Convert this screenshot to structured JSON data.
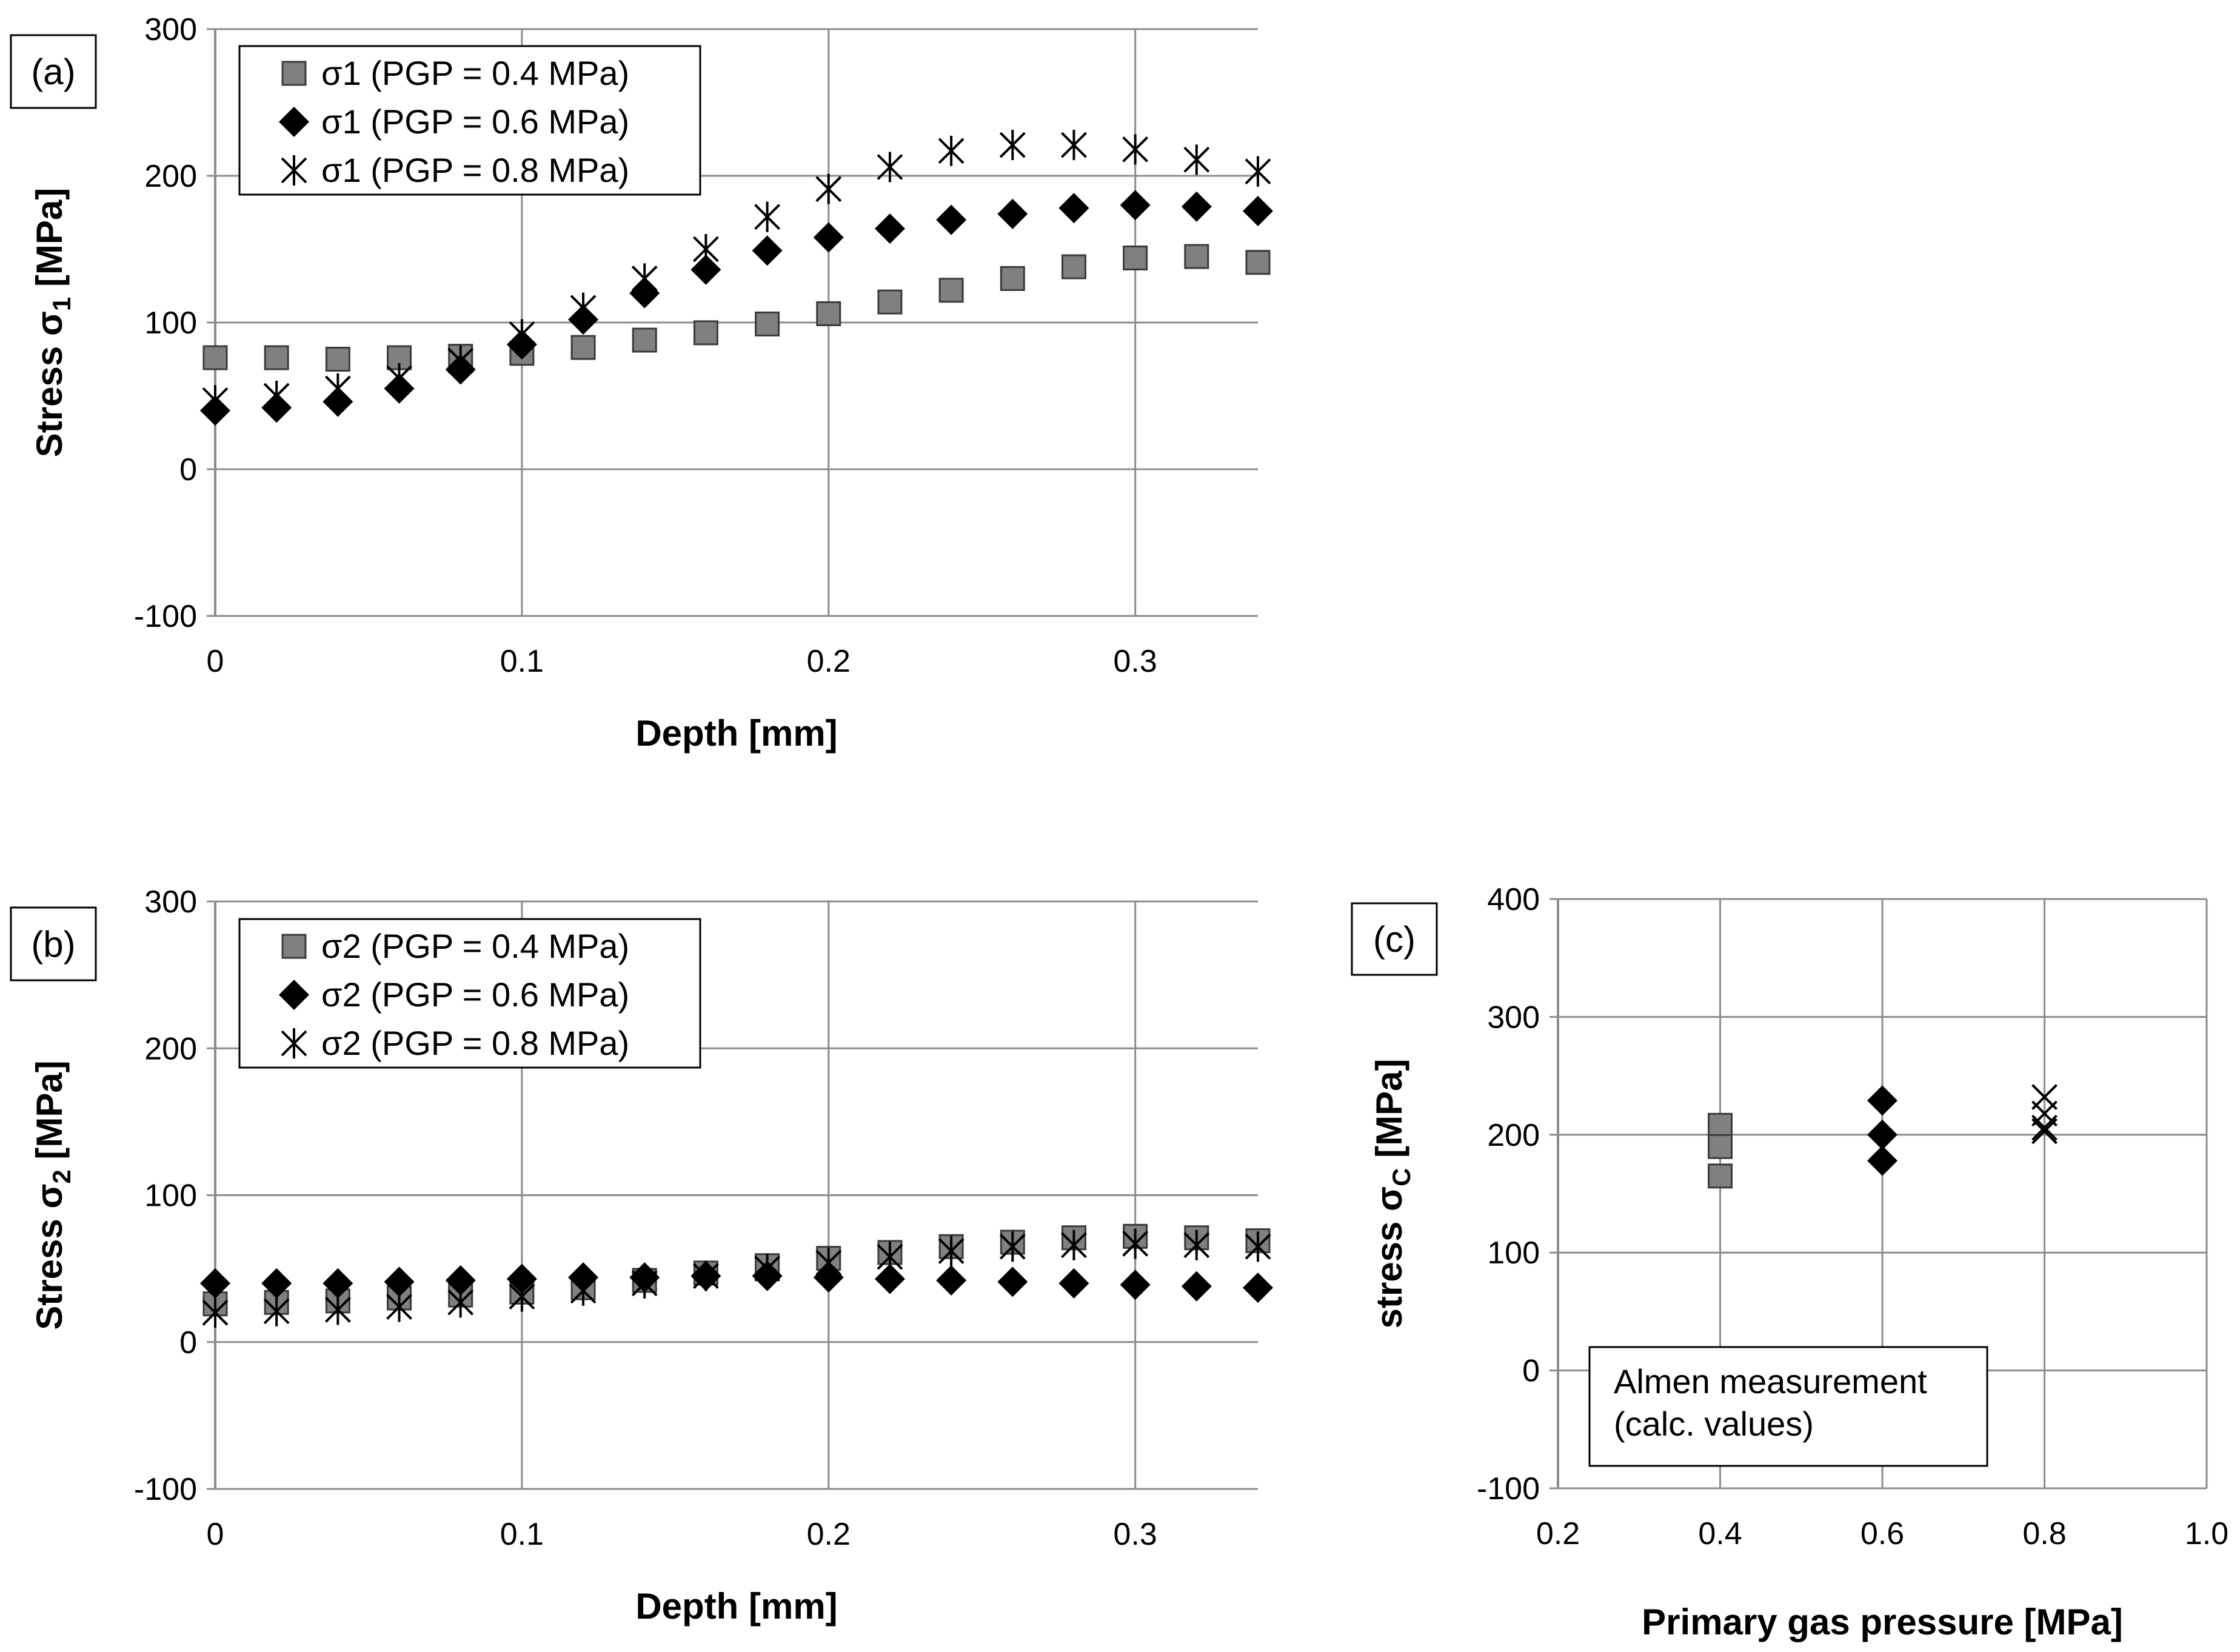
{
  "chart_data": [
    {
      "panel_label": "(a)",
      "type": "scatter",
      "xlabel": "Depth [mm]",
      "ylabel": {
        "main": "Stress σ",
        "sub": "1",
        "unit": " [MPa]"
      },
      "xlim": [
        0,
        0.34
      ],
      "ylim": [
        -100,
        300
      ],
      "xticks": [
        0,
        0.1,
        0.2,
        0.3
      ],
      "xtick_labels": [
        "0",
        "0.1",
        "0.2",
        "0.3"
      ],
      "yticks": [
        -100,
        0,
        100,
        200,
        300
      ],
      "ytick_labels": [
        "-100",
        "0",
        "100",
        "200",
        "300"
      ],
      "grid": true,
      "legend_position": "top-left",
      "x": [
        0,
        0.02,
        0.04,
        0.06,
        0.08,
        0.1,
        0.12,
        0.14,
        0.16,
        0.18,
        0.2,
        0.22,
        0.24,
        0.26,
        0.28,
        0.3,
        0.32,
        0.34
      ],
      "series": [
        {
          "name": "σ1 (PGP = 0.4 MPa)",
          "marker": "square",
          "color": "#808080",
          "values": [
            76,
            76,
            75,
            76,
            77,
            79,
            83,
            88,
            93,
            99,
            106,
            114,
            122,
            130,
            138,
            144,
            145,
            141
          ]
        },
        {
          "name": "σ1 (PGP = 0.6 MPa)",
          "marker": "diamond",
          "color": "#000000",
          "values": [
            40,
            42,
            46,
            55,
            68,
            85,
            102,
            120,
            136,
            149,
            158,
            164,
            170,
            174,
            178,
            180,
            179,
            176
          ]
        },
        {
          "name": "σ1 (PGP = 0.8 MPa)",
          "marker": "star",
          "color": "#000000",
          "values": [
            47,
            50,
            55,
            62,
            74,
            92,
            110,
            130,
            150,
            172,
            191,
            206,
            217,
            221,
            221,
            218,
            211,
            203
          ]
        }
      ]
    },
    {
      "panel_label": "(b)",
      "type": "scatter",
      "xlabel": "Depth [mm]",
      "ylabel": {
        "main": "Stress σ",
        "sub": "2",
        "unit": " [MPa]"
      },
      "xlim": [
        0,
        0.34
      ],
      "ylim": [
        -100,
        300
      ],
      "xticks": [
        0,
        0.1,
        0.2,
        0.3
      ],
      "xtick_labels": [
        "0",
        "0.1",
        "0.2",
        "0.3"
      ],
      "yticks": [
        -100,
        0,
        100,
        200,
        300
      ],
      "ytick_labels": [
        "-100",
        "0",
        "100",
        "200",
        "300"
      ],
      "grid": true,
      "legend_position": "top-left",
      "x": [
        0,
        0.02,
        0.04,
        0.06,
        0.08,
        0.1,
        0.12,
        0.14,
        0.16,
        0.18,
        0.2,
        0.22,
        0.24,
        0.26,
        0.28,
        0.3,
        0.32,
        0.34
      ],
      "series": [
        {
          "name": "σ2 (PGP = 0.4 MPa)",
          "marker": "square",
          "color": "#808080",
          "values": [
            26,
            27,
            28,
            30,
            32,
            34,
            37,
            42,
            47,
            52,
            57,
            61,
            65,
            68,
            71,
            72,
            71,
            69
          ]
        },
        {
          "name": "σ2 (PGP = 0.6 MPa)",
          "marker": "diamond",
          "color": "#000000",
          "values": [
            40,
            40,
            40,
            41,
            42,
            43,
            44,
            44,
            45,
            45,
            44,
            43,
            42,
            41,
            40,
            39,
            38,
            37
          ]
        },
        {
          "name": "σ2 (PGP = 0.8 MPa)",
          "marker": "star",
          "color": "#000000",
          "values": [
            20,
            21,
            22,
            24,
            27,
            31,
            35,
            40,
            45,
            50,
            54,
            58,
            62,
            65,
            66,
            67,
            66,
            65
          ]
        }
      ]
    },
    {
      "panel_label": "(c)",
      "type": "scatter",
      "xlabel": "Primary gas pressure [MPa]",
      "ylabel": {
        "main": "stress σ",
        "sub": "C",
        "unit": " [MPa]"
      },
      "xlim": [
        0.2,
        1.0
      ],
      "ylim": [
        -100,
        400
      ],
      "xticks": [
        0.2,
        0.4,
        0.6,
        0.8,
        1.0
      ],
      "xtick_labels": [
        "0.2",
        "0.4",
        "0.6",
        "0.8",
        "1.0"
      ],
      "yticks": [
        -100,
        0,
        100,
        200,
        300,
        400
      ],
      "ytick_labels": [
        "-100",
        "0",
        "100",
        "200",
        "300",
        "400"
      ],
      "grid": true,
      "annotation": [
        "Almen measurement",
        "(calc. values)"
      ],
      "series": [
        {
          "marker": "square",
          "color": "#808080",
          "x": [
            0.4,
            0.4,
            0.4
          ],
          "values": [
            208,
            190,
            165
          ]
        },
        {
          "marker": "diamond",
          "color": "#000000",
          "x": [
            0.6,
            0.6,
            0.6
          ],
          "values": [
            229,
            200,
            178
          ]
        },
        {
          "marker": "xmark",
          "color": "#000000",
          "x": [
            0.8,
            0.8,
            0.8,
            0.8
          ],
          "values": [
            232,
            218,
            206,
            203
          ]
        }
      ]
    }
  ]
}
